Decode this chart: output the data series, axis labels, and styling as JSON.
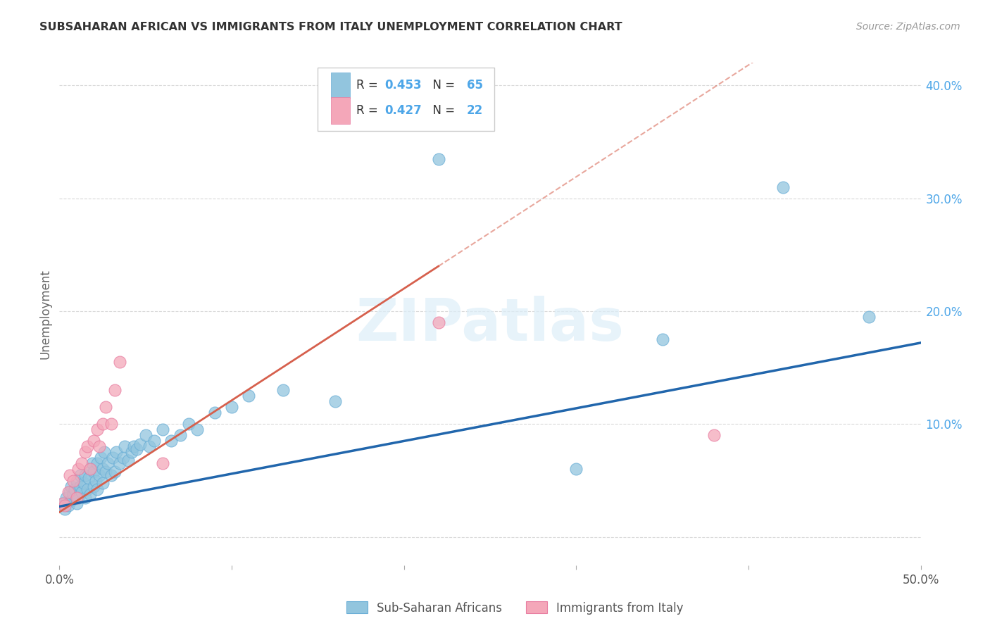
{
  "title": "SUBSAHARAN AFRICAN VS IMMIGRANTS FROM ITALY UNEMPLOYMENT CORRELATION CHART",
  "source": "Source: ZipAtlas.com",
  "ylabel": "Unemployment",
  "xlim": [
    0.0,
    0.5
  ],
  "ylim": [
    -0.025,
    0.42
  ],
  "blue_color": "#92c5de",
  "blue_edge": "#6aaed6",
  "pink_color": "#f4a7b9",
  "pink_edge": "#e87da1",
  "blue_line_color": "#2166ac",
  "pink_line_color": "#d6604d",
  "legend_label_blue": "Sub-Saharan Africans",
  "legend_label_pink": "Immigrants from Italy",
  "watermark_color": "#ddeef8",
  "grid_color": "#d0d0d0",
  "background_color": "#ffffff",
  "blue_x": [
    0.002,
    0.003,
    0.004,
    0.005,
    0.006,
    0.007,
    0.007,
    0.008,
    0.009,
    0.01,
    0.01,
    0.011,
    0.012,
    0.012,
    0.013,
    0.014,
    0.015,
    0.015,
    0.016,
    0.017,
    0.018,
    0.018,
    0.019,
    0.02,
    0.02,
    0.021,
    0.022,
    0.022,
    0.023,
    0.024,
    0.025,
    0.025,
    0.026,
    0.027,
    0.028,
    0.03,
    0.031,
    0.032,
    0.033,
    0.035,
    0.037,
    0.038,
    0.04,
    0.042,
    0.043,
    0.045,
    0.047,
    0.05,
    0.052,
    0.055,
    0.06,
    0.065,
    0.07,
    0.075,
    0.08,
    0.09,
    0.1,
    0.11,
    0.13,
    0.16,
    0.22,
    0.3,
    0.35,
    0.42,
    0.47
  ],
  "blue_y": [
    0.03,
    0.025,
    0.035,
    0.028,
    0.04,
    0.032,
    0.045,
    0.038,
    0.042,
    0.03,
    0.05,
    0.035,
    0.045,
    0.055,
    0.04,
    0.048,
    0.035,
    0.055,
    0.042,
    0.052,
    0.06,
    0.038,
    0.065,
    0.045,
    0.058,
    0.05,
    0.042,
    0.065,
    0.055,
    0.07,
    0.06,
    0.048,
    0.075,
    0.058,
    0.065,
    0.055,
    0.07,
    0.058,
    0.075,
    0.065,
    0.07,
    0.08,
    0.068,
    0.075,
    0.08,
    0.078,
    0.082,
    0.09,
    0.08,
    0.085,
    0.095,
    0.085,
    0.09,
    0.1,
    0.095,
    0.11,
    0.115,
    0.125,
    0.13,
    0.12,
    0.335,
    0.06,
    0.175,
    0.31,
    0.195
  ],
  "pink_x": [
    0.002,
    0.003,
    0.005,
    0.006,
    0.008,
    0.01,
    0.011,
    0.013,
    0.015,
    0.016,
    0.018,
    0.02,
    0.022,
    0.023,
    0.025,
    0.027,
    0.03,
    0.032,
    0.035,
    0.06,
    0.22,
    0.38
  ],
  "pink_y": [
    0.03,
    0.028,
    0.04,
    0.055,
    0.05,
    0.035,
    0.06,
    0.065,
    0.075,
    0.08,
    0.06,
    0.085,
    0.095,
    0.08,
    0.1,
    0.115,
    0.1,
    0.13,
    0.155,
    0.065,
    0.19,
    0.09
  ]
}
